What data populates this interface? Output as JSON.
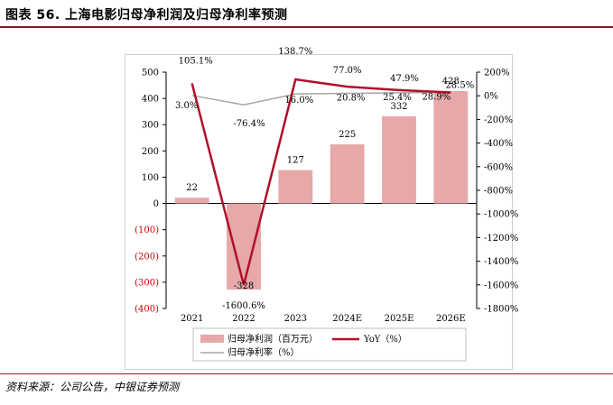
{
  "title": "图表 56. 上海电影归母净利润及归母净利率预测",
  "source": "资料来源：公司公告，中银证券预测",
  "colors": {
    "bar": "#e6a8a8",
    "yoy": "#b0102b",
    "margin": "#a6a6a6",
    "rule": "#8a1a2b"
  },
  "chart_data": {
    "type": "bar",
    "categories": [
      "2021",
      "2022",
      "2023",
      "2024E",
      "2025E",
      "2026E"
    ],
    "series": [
      {
        "name": "归母净利润（百万元）",
        "type": "bar",
        "axis": "left",
        "values": [
          22,
          -328,
          127,
          225,
          332,
          428
        ],
        "labels": [
          "22",
          "-328",
          "127",
          "225",
          "332",
          "428"
        ]
      },
      {
        "name": "YoY（%）",
        "type": "line",
        "axis": "right",
        "values": [
          105.1,
          -1600.6,
          138.7,
          77.0,
          47.9,
          28.5
        ],
        "labels": [
          "105.1%",
          "-1600.6%",
          "138.7%",
          "77.0%",
          "47.9%",
          "28.5%"
        ]
      },
      {
        "name": "归母净利率（%）",
        "type": "line",
        "axis": "right",
        "values": [
          3.0,
          -76.4,
          16.0,
          20.8,
          25.4,
          28.9
        ],
        "labels": [
          "3.0%",
          "-76.4%",
          "16.0%",
          "20.8%",
          "25.4%",
          "28.9%"
        ]
      }
    ],
    "ylim_left": [
      -400,
      500
    ],
    "left_ticks": [
      "500",
      "400",
      "300",
      "200",
      "100",
      "0",
      "(100)",
      "(200)",
      "(300)",
      "(400)"
    ],
    "left_tick_values": [
      500,
      400,
      300,
      200,
      100,
      0,
      -100,
      -200,
      -300,
      -400
    ],
    "ylim_right": [
      -1800,
      200
    ],
    "right_ticks": [
      "200%",
      "0%",
      "-200%",
      "-400%",
      "-600%",
      "-800%",
      "-1000%",
      "-1200%",
      "-1400%",
      "-1600%",
      "-1800%"
    ],
    "right_tick_values": [
      200,
      0,
      -200,
      -400,
      -600,
      -800,
      -1000,
      -1200,
      -1400,
      -1600,
      -1800
    ],
    "legend_position": "bottom",
    "grid": false
  }
}
